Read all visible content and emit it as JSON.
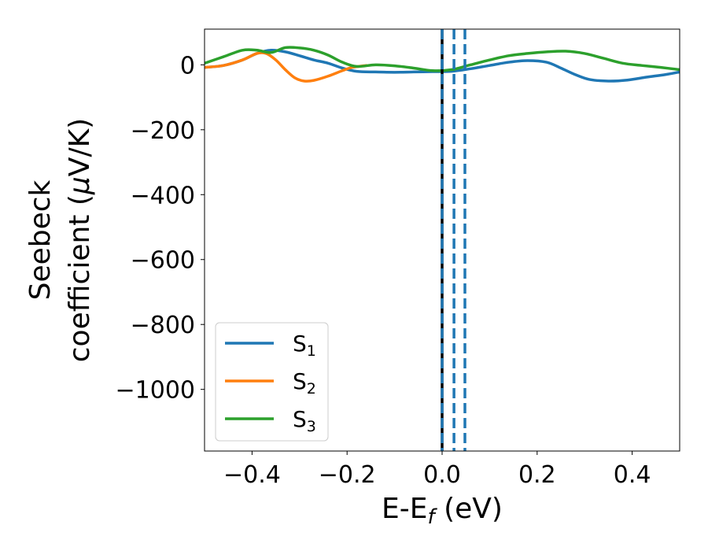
{
  "chart_data": {
    "type": "line",
    "xlabel": {
      "main": "E-E",
      "sub": "f",
      "suffix": " (eV)"
    },
    "ylabel": {
      "line1": "Seebeck",
      "line2_pre": "coefficient  (",
      "line2_mu": "μ",
      "line2_post": "V/K)"
    },
    "xlim": [
      -0.5,
      0.5
    ],
    "ylim": [
      -1190,
      110
    ],
    "xticks": [
      -0.4,
      -0.2,
      0.0,
      0.2,
      0.4
    ],
    "xtick_labels": [
      "−0.4",
      "−0.2",
      "0.0",
      "0.2",
      "0.4"
    ],
    "yticks": [
      0,
      -200,
      -400,
      -600,
      -800,
      -1000
    ],
    "ytick_labels": [
      "0",
      "−200",
      "−400",
      "−600",
      "−800",
      "−1000"
    ],
    "grid": false,
    "legend_position": "lower-left",
    "series": [
      {
        "name": "S",
        "name_sub": "1",
        "color": "#1f77b4",
        "points": [
          [
            -0.5,
            -8
          ],
          [
            -0.46,
            -2
          ],
          [
            -0.42,
            15
          ],
          [
            -0.39,
            35
          ],
          [
            -0.36,
            45
          ],
          [
            -0.33,
            40
          ],
          [
            -0.3,
            28
          ],
          [
            -0.27,
            15
          ],
          [
            -0.24,
            5
          ],
          [
            -0.21,
            -10
          ],
          [
            -0.18,
            -20
          ],
          [
            -0.14,
            -22
          ],
          [
            -0.1,
            -23
          ],
          [
            -0.06,
            -22
          ],
          [
            -0.02,
            -21
          ],
          [
            0.02,
            -20
          ],
          [
            0.06,
            -12
          ],
          [
            0.1,
            -2
          ],
          [
            0.14,
            8
          ],
          [
            0.18,
            13
          ],
          [
            0.22,
            8
          ],
          [
            0.25,
            -10
          ],
          [
            0.28,
            -30
          ],
          [
            0.31,
            -45
          ],
          [
            0.35,
            -50
          ],
          [
            0.39,
            -47
          ],
          [
            0.43,
            -38
          ],
          [
            0.47,
            -30
          ],
          [
            0.5,
            -22
          ]
        ]
      },
      {
        "name": "S",
        "name_sub": "2",
        "color": "#ff7f0e",
        "points": [
          [
            -0.5,
            -8
          ],
          [
            -0.46,
            -2
          ],
          [
            -0.42,
            15
          ],
          [
            -0.39,
            35
          ],
          [
            -0.37,
            35
          ],
          [
            -0.35,
            15
          ],
          [
            -0.33,
            -15
          ],
          [
            -0.31,
            -40
          ],
          [
            -0.29,
            -50
          ],
          [
            -0.27,
            -48
          ],
          [
            -0.24,
            -35
          ],
          [
            -0.21,
            -18
          ],
          [
            -0.19,
            -8
          ],
          [
            -0.16,
            -2
          ]
        ]
      },
      {
        "name": "S",
        "name_sub": "3",
        "color": "#2ca02c",
        "points": [
          [
            -0.5,
            5
          ],
          [
            -0.46,
            25
          ],
          [
            -0.42,
            45
          ],
          [
            -0.39,
            45
          ],
          [
            -0.36,
            38
          ],
          [
            -0.33,
            53
          ],
          [
            -0.3,
            52
          ],
          [
            -0.27,
            45
          ],
          [
            -0.24,
            30
          ],
          [
            -0.21,
            8
          ],
          [
            -0.18,
            -5
          ],
          [
            -0.14,
            0
          ],
          [
            -0.1,
            -3
          ],
          [
            -0.06,
            -10
          ],
          [
            -0.02,
            -18
          ],
          [
            0.02,
            -15
          ],
          [
            0.06,
            0
          ],
          [
            0.1,
            15
          ],
          [
            0.14,
            28
          ],
          [
            0.18,
            35
          ],
          [
            0.22,
            40
          ],
          [
            0.26,
            42
          ],
          [
            0.3,
            35
          ],
          [
            0.34,
            20
          ],
          [
            0.38,
            5
          ],
          [
            0.42,
            -2
          ],
          [
            0.46,
            -8
          ],
          [
            0.5,
            -15
          ]
        ]
      }
    ],
    "vlines": [
      {
        "x": 0.0,
        "color": "#000000",
        "style": "solid"
      },
      {
        "x": 0.0,
        "color": "#1f77b4",
        "style": "dashed"
      },
      {
        "x": 0.025,
        "color": "#1f77b4",
        "style": "dashed"
      },
      {
        "x": 0.048,
        "color": "#1f77b4",
        "style": "dashed"
      }
    ]
  }
}
